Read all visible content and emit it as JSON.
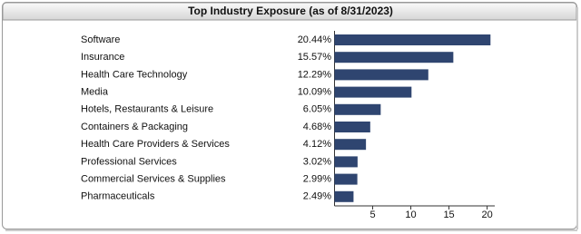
{
  "chart_data": {
    "type": "bar",
    "orientation": "horizontal",
    "title": "Top Industry Exposure (as of 8/31/2023)",
    "categories": [
      "Software",
      "Insurance",
      "Health Care Technology",
      "Media",
      "Hotels, Restaurants & Leisure",
      "Containers & Packaging",
      "Health Care Providers & Services",
      "Professional Services",
      "Commercial Services & Supplies",
      "Pharmaceuticals"
    ],
    "values": [
      20.44,
      15.57,
      12.29,
      10.09,
      6.05,
      4.68,
      4.12,
      3.02,
      2.99,
      2.49
    ],
    "value_labels": [
      "20.44%",
      "15.57%",
      "12.29%",
      "10.09%",
      "6.05%",
      "4.68%",
      "4.12%",
      "3.02%",
      "2.99%",
      "2.49%"
    ],
    "color": "#2f4570",
    "xlim": [
      0,
      21
    ],
    "xticks": [
      5,
      10,
      15,
      20
    ]
  }
}
